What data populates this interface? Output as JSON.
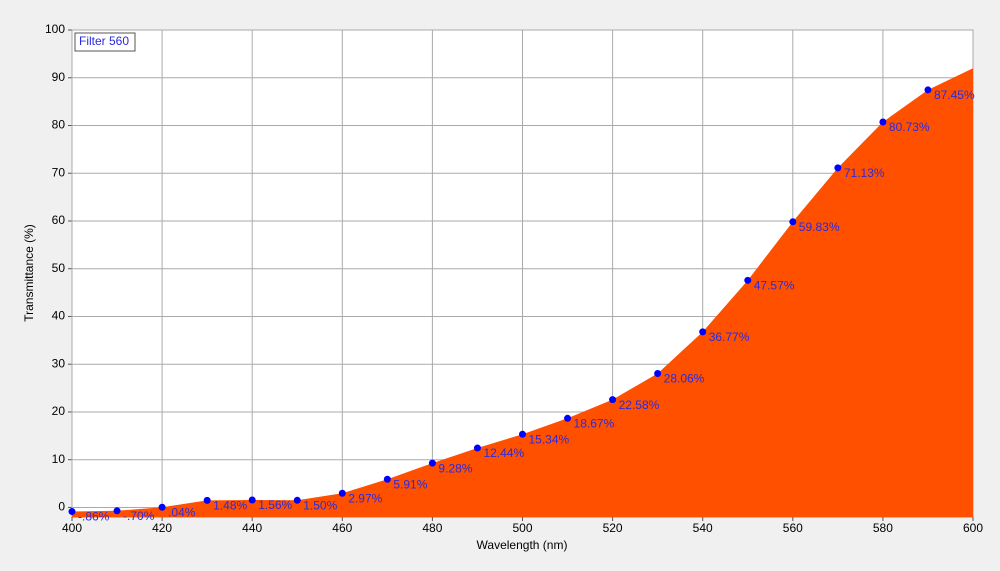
{
  "chart_data": {
    "type": "area",
    "x_label": "Wavelength (nm)",
    "y_label": "Transmittance (%)",
    "x": [
      400,
      410,
      420,
      430,
      440,
      450,
      460,
      470,
      480,
      490,
      500,
      510,
      520,
      530,
      540,
      550,
      560,
      570,
      580,
      590,
      600
    ],
    "series": [
      {
        "name": "Filter 560",
        "color": "#ff5000",
        "marker_color": "#0000ff",
        "values": [
          -0.86,
          -0.7,
          0.04,
          1.48,
          1.56,
          1.5,
          2.97,
          5.91,
          9.28,
          12.44,
          15.34,
          18.67,
          22.58,
          28.06,
          36.77,
          47.57,
          59.83,
          71.13,
          80.73,
          87.45,
          92
        ],
        "value_labels": [
          "-.86%",
          "-.70%",
          ".04%",
          "1.48%",
          "1.56%",
          "1.50%",
          "2.97%",
          "5.91%",
          "9.28%",
          "12.44%",
          "15.34%",
          "18.67%",
          "22.58%",
          "28.06%",
          "36.77%",
          "47.57%",
          "59.83%",
          "71.13%",
          "80.73%",
          "87.45%",
          null
        ]
      }
    ],
    "xlim": [
      400,
      600
    ],
    "xticks": [
      400,
      420,
      440,
      460,
      480,
      500,
      520,
      540,
      560,
      580,
      600
    ],
    "ylim": [
      -2,
      100
    ],
    "yticks": [
      0,
      10,
      20,
      30,
      40,
      50,
      60,
      70,
      80,
      90,
      100
    ],
    "grid": true,
    "legend": "upper left"
  }
}
